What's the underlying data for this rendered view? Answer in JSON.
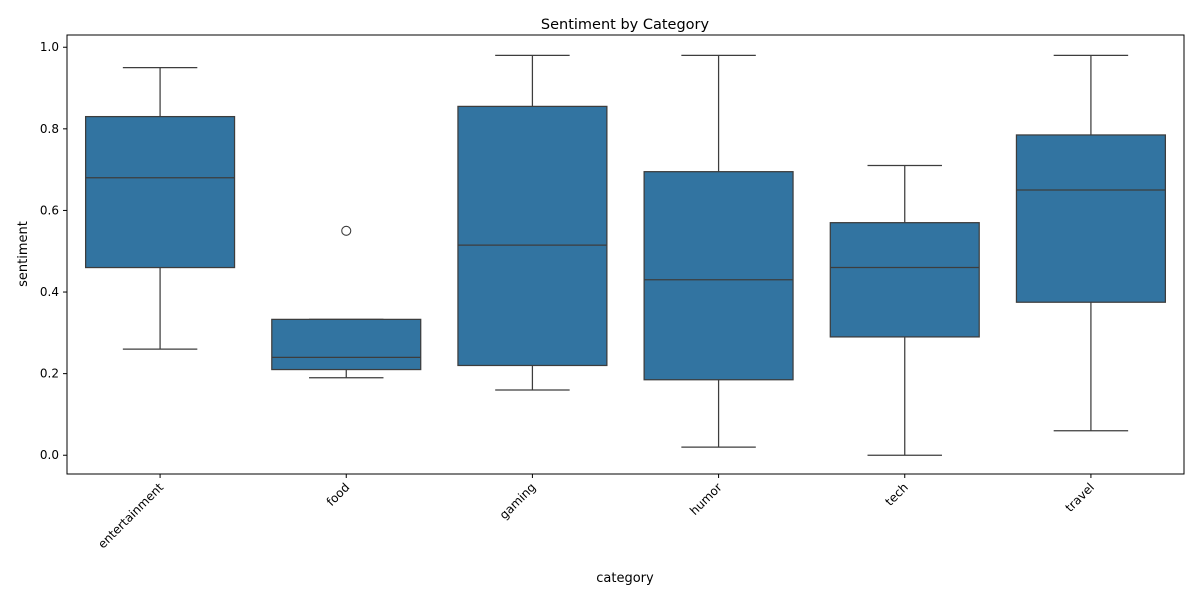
{
  "chart_data": {
    "type": "box",
    "title": "Sentiment by Category",
    "xlabel": "category",
    "ylabel": "sentiment",
    "ylim": [
      -0.046,
      1.03
    ],
    "yticks": [
      "0.0",
      "0.2",
      "0.4",
      "0.6",
      "0.8",
      "1.0"
    ],
    "ytick_values": [
      0.0,
      0.2,
      0.4,
      0.6,
      0.8,
      1.0
    ],
    "categories": [
      "entertainment",
      "food",
      "gaming",
      "humor",
      "tech",
      "travel"
    ],
    "series": [
      {
        "whisker_low": 0.26,
        "q1": 0.46,
        "median": 0.68,
        "q3": 0.83,
        "whisker_high": 0.95,
        "outliers": []
      },
      {
        "whisker_low": 0.19,
        "q1": 0.21,
        "median": 0.24,
        "q3": 0.333,
        "whisker_high": 0.333,
        "outliers": [
          0.55
        ]
      },
      {
        "whisker_low": 0.16,
        "q1": 0.22,
        "median": 0.515,
        "q3": 0.855,
        "whisker_high": 0.98,
        "outliers": []
      },
      {
        "whisker_low": 0.02,
        "q1": 0.185,
        "median": 0.43,
        "q3": 0.695,
        "whisker_high": 0.98,
        "outliers": []
      },
      {
        "whisker_low": 0.0,
        "q1": 0.29,
        "median": 0.46,
        "q3": 0.57,
        "whisker_high": 0.71,
        "outliers": []
      },
      {
        "whisker_low": 0.06,
        "q1": 0.375,
        "median": 0.65,
        "q3": 0.785,
        "whisker_high": 0.98,
        "outliers": []
      }
    ],
    "box_color": "#3274a1",
    "line_color": "#3d3d3d",
    "grid": false,
    "legend": "none"
  }
}
